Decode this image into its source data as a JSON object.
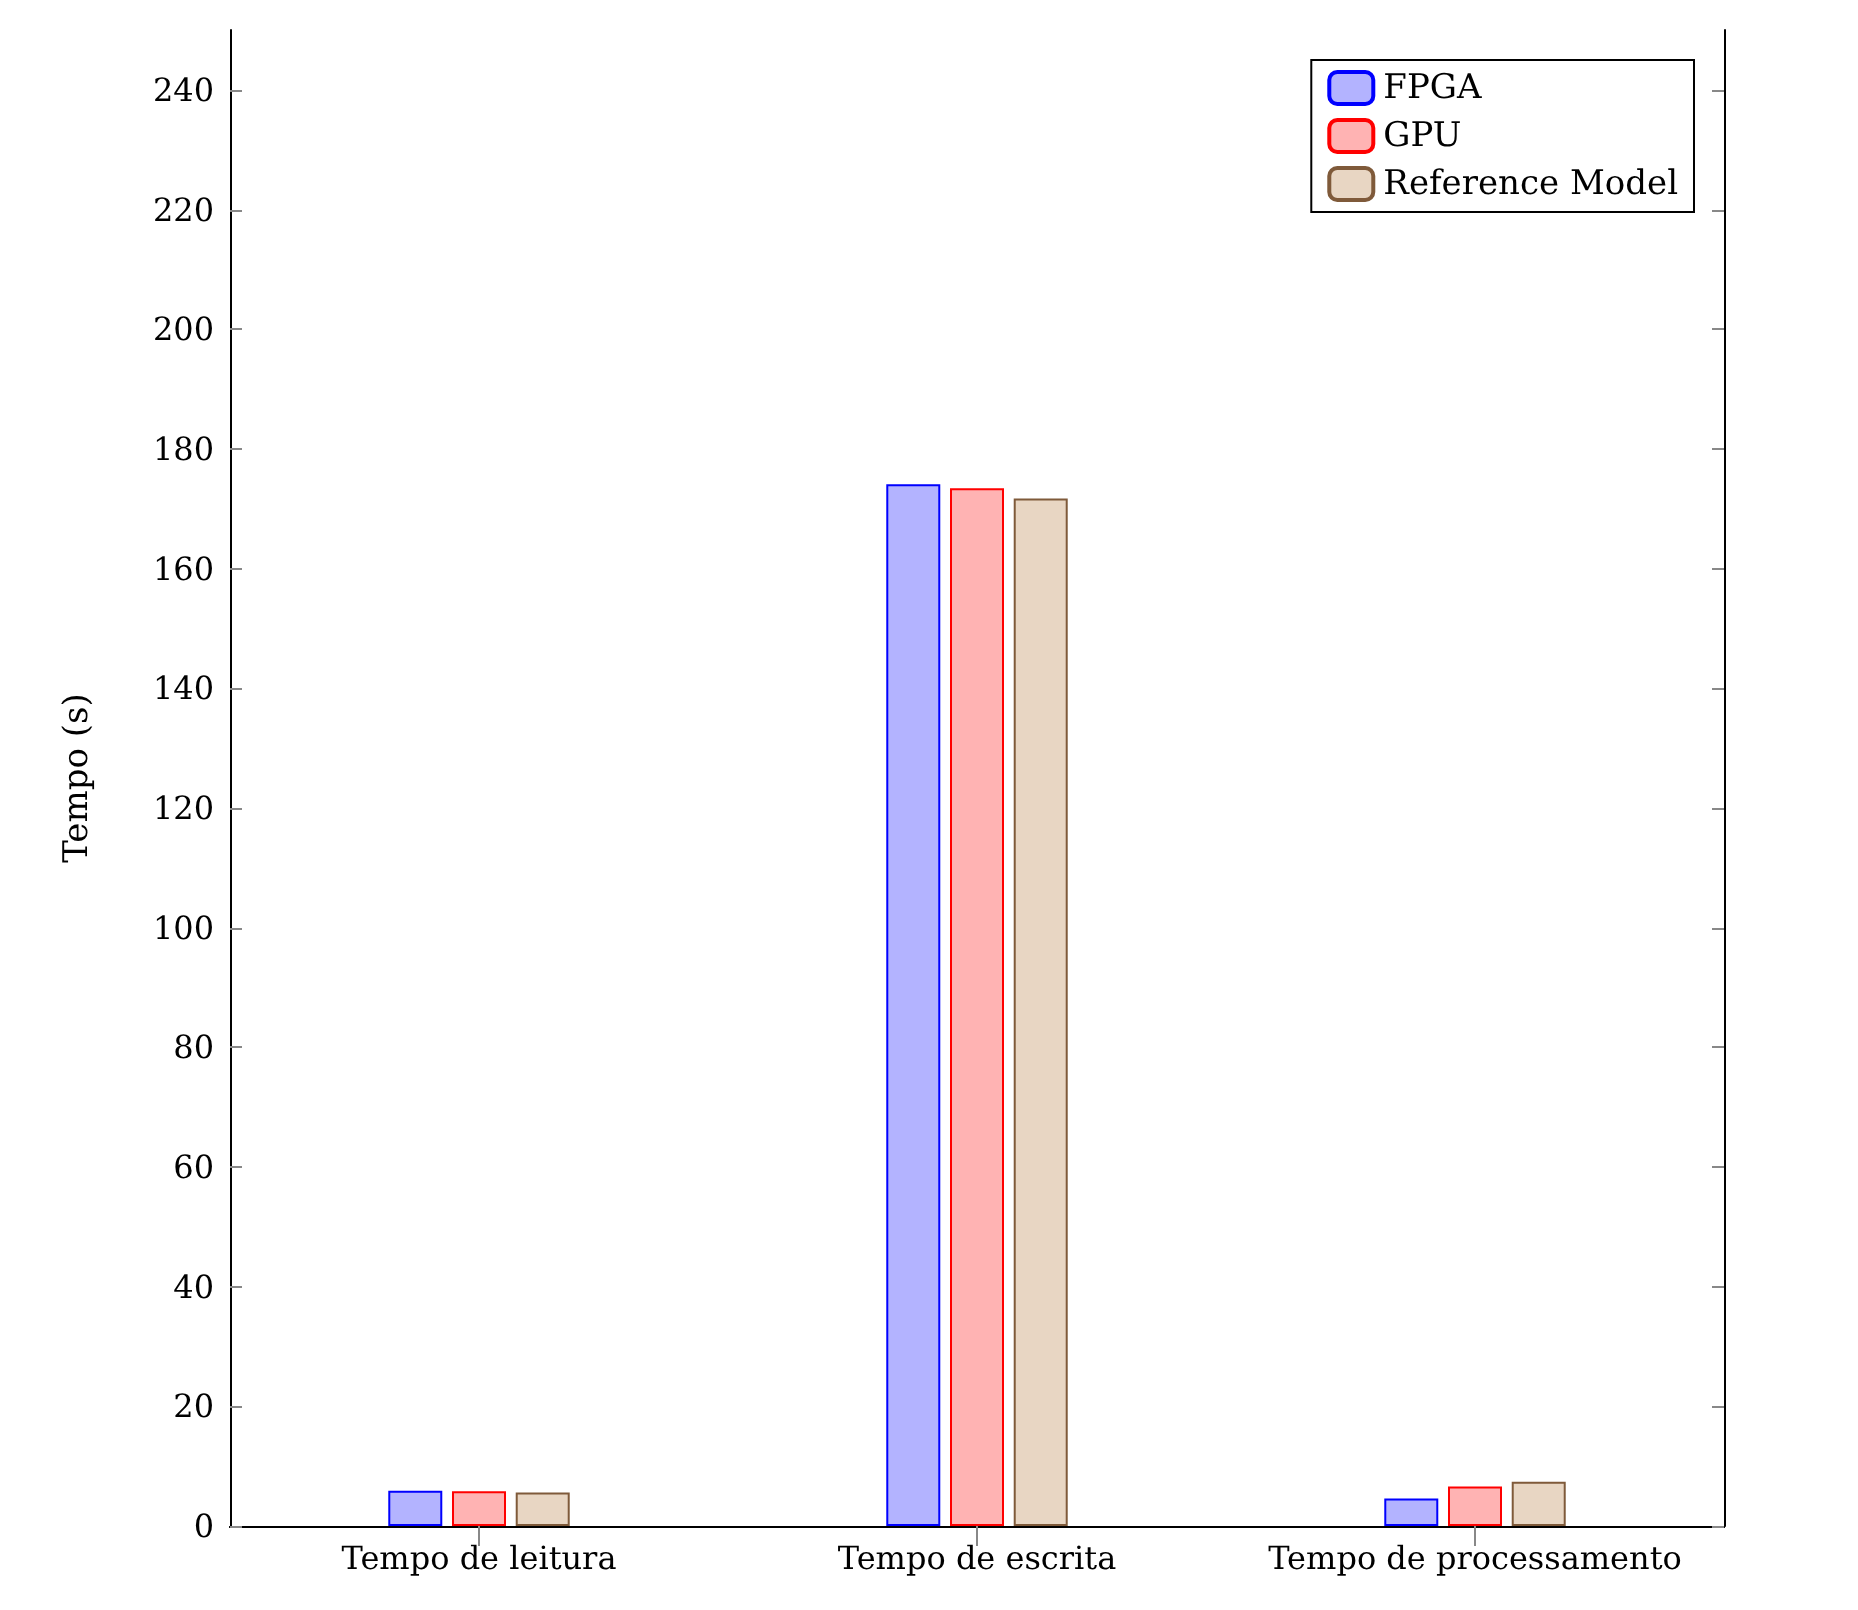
{
  "chart_data": {
    "type": "bar",
    "ylabel": "Tempo (s)",
    "categories": [
      "Tempo de leitura",
      "Tempo de escrita",
      "Tempo de processamento"
    ],
    "series": [
      {
        "name": "FPGA",
        "color": "#b3b3ff",
        "values": [
          5.9,
          174.1,
          4.6
        ]
      },
      {
        "name": "GPU",
        "color": "#ffb3b3",
        "values": [
          5.8,
          173.4,
          6.6
        ]
      },
      {
        "name": "Reference Model",
        "color": "#e8d6c3",
        "values": [
          5.6,
          171.7,
          7.4
        ]
      }
    ],
    "ylim": [
      0,
      250
    ],
    "yticks": [
      0,
      20,
      40,
      60,
      80,
      100,
      120,
      140,
      160,
      180,
      200,
      220,
      240
    ],
    "grid": false,
    "legend": "top right"
  }
}
